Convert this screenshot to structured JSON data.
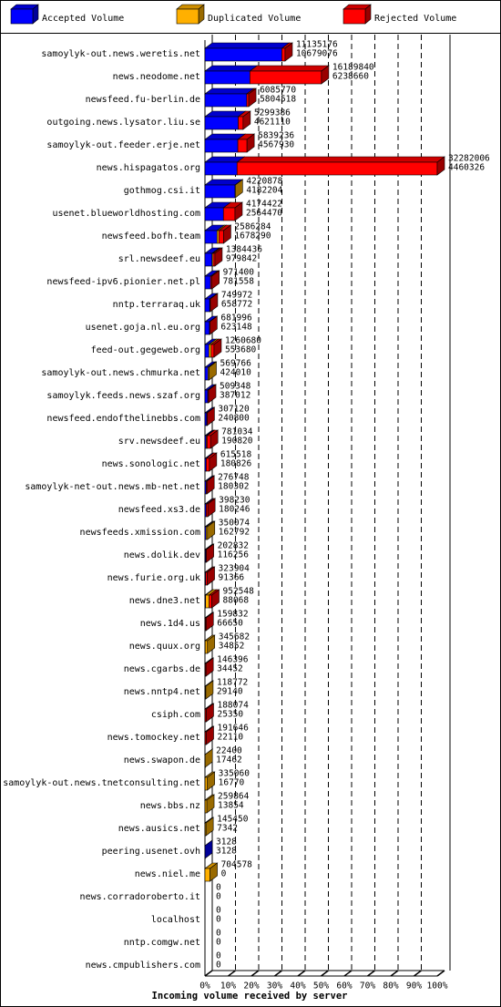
{
  "chart_data": {
    "type": "stacked-bar-3d",
    "x_label": "Incoming volume received by server",
    "xlim": [
      0,
      100
    ],
    "xticks": [
      {
        "value": 0,
        "label": "0%"
      },
      {
        "value": 10,
        "label": "10%"
      },
      {
        "value": 20,
        "label": "20%"
      },
      {
        "value": 30,
        "label": "30%"
      },
      {
        "value": 40,
        "label": "40%"
      },
      {
        "value": 50,
        "label": "50%"
      },
      {
        "value": 60,
        "label": "60%"
      },
      {
        "value": 70,
        "label": "70%"
      },
      {
        "value": 80,
        "label": "80%"
      },
      {
        "value": 90,
        "label": "90%"
      },
      {
        "value": 100,
        "label": "100%"
      }
    ],
    "grid": true,
    "categories": [
      "samoylyk-out.news.weretis.net",
      "news.neodome.net",
      "newsfeed.fu-berlin.de",
      "outgoing.news.lysator.liu.se",
      "samoylyk-out.feeder.erje.net",
      "news.hispagatos.org",
      "gothmog.csi.it",
      "usenet.blueworldhosting.com",
      "newsfeed.bofh.team",
      "srl.newsdeef.eu",
      "newsfeed-ipv6.pionier.net.pl",
      "nntp.terraraq.uk",
      "usenet.goja.nl.eu.org",
      "feed-out.gegeweb.org",
      "samoylyk-out.news.chmurka.net",
      "samoylyk.feeds.news.szaf.org",
      "newsfeed.endofthelinebbs.com",
      "srv.newsdeef.eu",
      "news.sonologic.net",
      "samoylyk-net-out.news.mb-net.net",
      "newsfeed.xs3.de",
      "newsfeeds.xmission.com",
      "news.dolik.dev",
      "news.furie.org.uk",
      "news.dne3.net",
      "news.1d4.us",
      "news.quux.org",
      "news.cgarbs.de",
      "news.nntp4.net",
      "csiph.com",
      "news.tomockey.net",
      "news.swapon.de",
      "samoylyk-out.news.tnetconsulting.net",
      "news.bbs.nz",
      "news.ausics.net",
      "peering.usenet.ovh",
      "news.niel.me",
      "news.corradoroberto.it",
      "localhost",
      "nntp.comgw.net",
      "news.cmpublishers.com"
    ],
    "totals": [
      11135176,
      16189840,
      6085770,
      5299386,
      5839236,
      32282006,
      4220878,
      4174422,
      2586284,
      1384436,
      971400,
      749972,
      681996,
      1260680,
      569766,
      509348,
      307120,
      781034,
      615518,
      276748,
      398230,
      350074,
      202832,
      323904,
      952548,
      159832,
      345682,
      146396,
      118772,
      188074,
      191646,
      22400,
      335060,
      259864,
      145450,
      3128,
      704578,
      0,
      0,
      0,
      0
    ],
    "series": [
      {
        "name": "Accepted Volume",
        "color": "#0000ff",
        "values": [
          10679076,
          6238660,
          5804518,
          4621110,
          4567930,
          4460326,
          4182204,
          2564470,
          1678290,
          979842,
          781558,
          658772,
          623148,
          553680,
          424010,
          387012,
          240800,
          190820,
          180826,
          180302,
          180246,
          162792,
          116256,
          91366,
          88068,
          66650,
          34852,
          34452,
          29140,
          25350,
          22110,
          17462,
          16770,
          13854,
          7342,
          3128,
          0,
          0,
          0,
          0,
          0
        ]
      },
      {
        "name": "Duplicated Volume",
        "color": "#ffb000",
        "values": [
          0,
          0,
          0,
          0,
          0,
          0,
          38674,
          0,
          250000,
          150000,
          0,
          0,
          0,
          300000,
          145756,
          0,
          0,
          100000,
          0,
          0,
          0,
          187282,
          0,
          0,
          500000,
          0,
          310830,
          0,
          89632,
          0,
          0,
          4938,
          318290,
          246010,
          138108,
          0,
          704578,
          0,
          0,
          0,
          0
        ]
      },
      {
        "name": "Rejected Volume",
        "color": "#ff0000",
        "values": [
          456100,
          9951180,
          281252,
          678276,
          1271306,
          27821680,
          0,
          1609952,
          657994,
          254594,
          189842,
          91200,
          58848,
          407000,
          0,
          122336,
          66320,
          490214,
          434692,
          96446,
          217984,
          0,
          86576,
          232538,
          364480,
          93182,
          0,
          111944,
          0,
          162724,
          169536,
          0,
          0,
          0,
          0,
          0,
          0,
          0,
          0,
          0,
          0
        ]
      }
    ]
  }
}
